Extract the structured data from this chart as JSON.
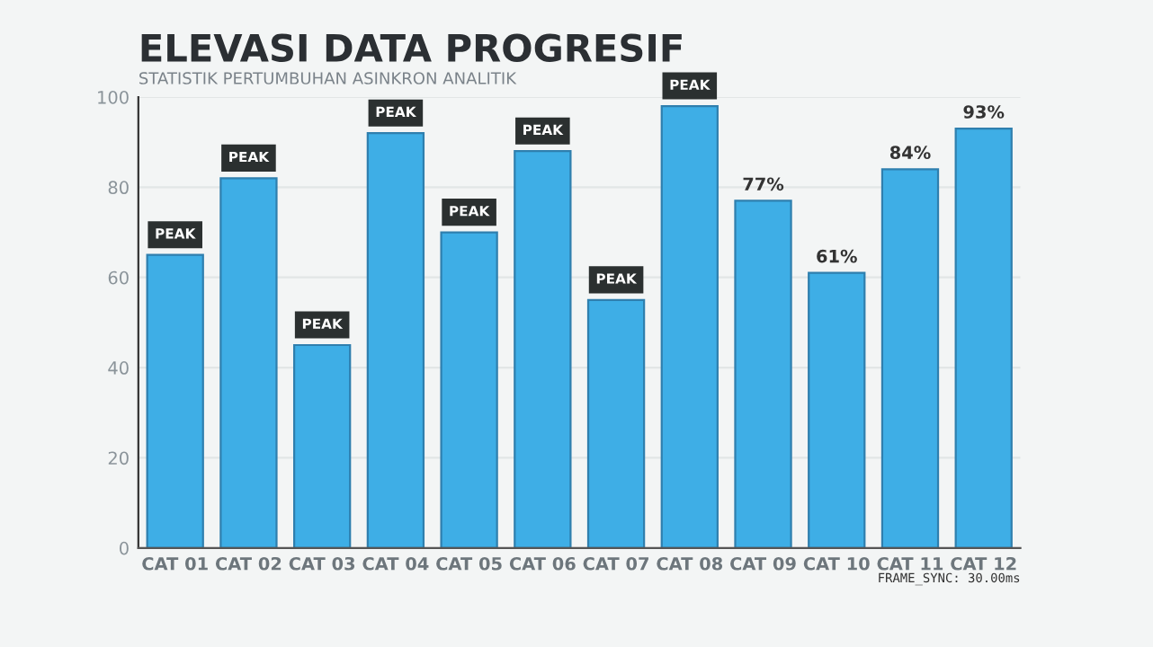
{
  "chart_data": {
    "type": "bar",
    "title": "ELEVASI DATA PROGRESIF",
    "subtitle": "STATISTIK PERTUMBUHAN ASINKRON ANALITIK",
    "categories": [
      "CAT 01",
      "CAT 02",
      "CAT 03",
      "CAT 04",
      "CAT 05",
      "CAT 06",
      "CAT 07",
      "CAT 08",
      "CAT 09",
      "CAT 10",
      "CAT 11",
      "CAT 12"
    ],
    "values": [
      65,
      82,
      45,
      92,
      70,
      88,
      55,
      98,
      77,
      61,
      84,
      93
    ],
    "value_labels": [
      "PEAK",
      "PEAK",
      "PEAK",
      "PEAK",
      "PEAK",
      "PEAK",
      "PEAK",
      "PEAK",
      "77%",
      "61%",
      "84%",
      "93%"
    ],
    "color": "#3eaee6",
    "ylim": [
      0,
      100
    ],
    "yticks": [
      0,
      20,
      40,
      60,
      80,
      100
    ],
    "grid": "y",
    "annotations": [
      "FRAME_SYNC: 30.00ms"
    ]
  }
}
